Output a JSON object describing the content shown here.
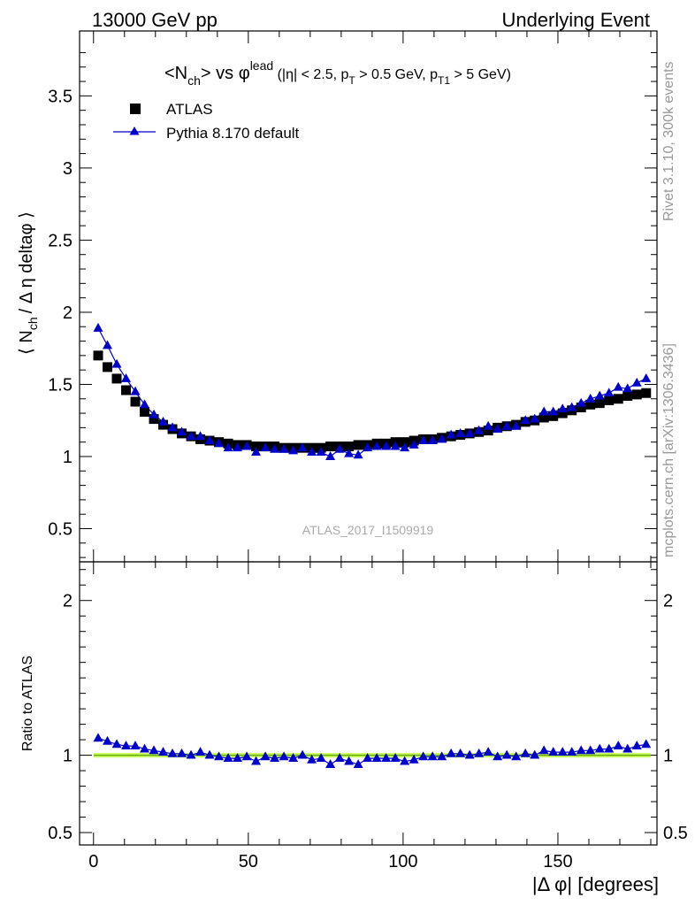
{
  "header": {
    "left": "13000 GeV pp",
    "right": "Underlying Event"
  },
  "side_labels": {
    "top": "Rivet 3.1.10,  300k events",
    "bottom": "mcplots.cern.ch [arXiv:1306.3436]"
  },
  "watermark": "ATLAS_2017_I1509919",
  "colors": {
    "data": "#000000",
    "mc": "#0000cc",
    "band_fill": "#ccff66",
    "unity_line": "#66aa00"
  },
  "chart_data": [
    {
      "type": "scatter",
      "title": {
        "main": "<N",
        "main_sub": "ch",
        "main_mid": "> vs ",
        "phi": "φ",
        "phi_sup": "lead",
        "cut_1": " (|η| < 2.5, p",
        "cut_1_sub": "T",
        "cut_2": " > 0.5 GeV, p",
        "cut_2_sub": "T1",
        "cut_3": " > 5 GeV)"
      },
      "ylabel": "⟨ N",
      "ylabel_sub": "ch",
      "ylabel_rest": "/ Δ η deltaφ ⟩",
      "xlim": [
        -4.5,
        182
      ],
      "ylim": [
        0.27,
        3.95
      ],
      "yticks": [
        0.5,
        1,
        1.5,
        2,
        2.5,
        3,
        3.5
      ],
      "ytick_labels": [
        "0.5",
        "1",
        "1.5",
        "2",
        "2.5",
        "3",
        "3.5"
      ],
      "legend": {
        "position": "top-left",
        "entries": [
          "ATLAS",
          "Pythia 8.170 default"
        ]
      },
      "x": [
        1.5,
        4.5,
        7.5,
        10.5,
        13.5,
        16.5,
        19.5,
        22.5,
        25.5,
        28.5,
        31.5,
        34.5,
        37.5,
        40.5,
        43.5,
        46.5,
        49.5,
        52.5,
        55.5,
        58.5,
        61.5,
        64.5,
        67.5,
        70.5,
        73.5,
        76.5,
        79.5,
        82.5,
        85.5,
        88.5,
        91.5,
        94.5,
        97.5,
        100.5,
        103.5,
        106.5,
        109.5,
        112.5,
        115.5,
        118.5,
        121.5,
        124.5,
        127.5,
        130.5,
        133.5,
        136.5,
        139.5,
        142.5,
        145.5,
        148.5,
        151.5,
        154.5,
        157.5,
        160.5,
        163.5,
        166.5,
        169.5,
        172.5,
        175.5,
        178.5
      ],
      "series": [
        {
          "name": "ATLAS",
          "marker": "square",
          "values": [
            1.7,
            1.62,
            1.54,
            1.46,
            1.38,
            1.31,
            1.26,
            1.22,
            1.19,
            1.16,
            1.14,
            1.12,
            1.11,
            1.1,
            1.09,
            1.08,
            1.08,
            1.07,
            1.07,
            1.07,
            1.06,
            1.06,
            1.06,
            1.06,
            1.06,
            1.07,
            1.07,
            1.07,
            1.08,
            1.08,
            1.09,
            1.09,
            1.1,
            1.1,
            1.11,
            1.12,
            1.12,
            1.13,
            1.14,
            1.15,
            1.16,
            1.17,
            1.18,
            1.2,
            1.21,
            1.22,
            1.24,
            1.25,
            1.27,
            1.28,
            1.3,
            1.32,
            1.34,
            1.36,
            1.37,
            1.39,
            1.4,
            1.42,
            1.43,
            1.44
          ]
        },
        {
          "name": "Pythia 8.170 default",
          "marker": "triangle",
          "values": [
            1.89,
            1.77,
            1.64,
            1.54,
            1.45,
            1.36,
            1.29,
            1.24,
            1.2,
            1.17,
            1.14,
            1.14,
            1.11,
            1.09,
            1.06,
            1.06,
            1.07,
            1.03,
            1.06,
            1.05,
            1.05,
            1.04,
            1.06,
            1.03,
            1.03,
            1.0,
            1.05,
            1.02,
            1.01,
            1.06,
            1.07,
            1.07,
            1.07,
            1.06,
            1.08,
            1.11,
            1.11,
            1.12,
            1.15,
            1.16,
            1.16,
            1.18,
            1.21,
            1.19,
            1.21,
            1.21,
            1.25,
            1.26,
            1.31,
            1.31,
            1.33,
            1.34,
            1.37,
            1.4,
            1.42,
            1.44,
            1.48,
            1.47,
            1.51,
            1.54
          ]
        }
      ]
    },
    {
      "type": "scatter",
      "ylabel": "Ratio to ATLAS",
      "xlabel": "|Δ φ| [degrees]",
      "xlim": [
        -4.5,
        182
      ],
      "ylim": [
        0.42,
        2.25
      ],
      "xticks": [
        0,
        50,
        100,
        150
      ],
      "xtick_labels": [
        "0",
        "50",
        "100",
        "150"
      ],
      "yticks": [
        0.5,
        1,
        2
      ],
      "ytick_labels": [
        "0.5",
        "1",
        "2"
      ],
      "band": [
        0.985,
        1.015
      ],
      "series": [
        {
          "name": "Pythia 8.170 default",
          "marker": "triangle",
          "values": [
            1.11,
            1.09,
            1.07,
            1.06,
            1.06,
            1.04,
            1.03,
            1.02,
            1.01,
            1.01,
            1.0,
            1.02,
            1.0,
            0.99,
            0.98,
            0.98,
            0.99,
            0.96,
            0.99,
            0.98,
            0.99,
            0.98,
            1.0,
            0.97,
            0.98,
            0.94,
            0.98,
            0.96,
            0.94,
            0.98,
            0.98,
            0.98,
            0.98,
            0.96,
            0.97,
            0.99,
            0.99,
            0.99,
            1.01,
            1.01,
            1.0,
            1.01,
            1.02,
            0.99,
            1.0,
            0.99,
            1.01,
            1.0,
            1.03,
            1.02,
            1.02,
            1.02,
            1.03,
            1.03,
            1.04,
            1.04,
            1.06,
            1.04,
            1.06,
            1.07
          ]
        }
      ]
    }
  ]
}
